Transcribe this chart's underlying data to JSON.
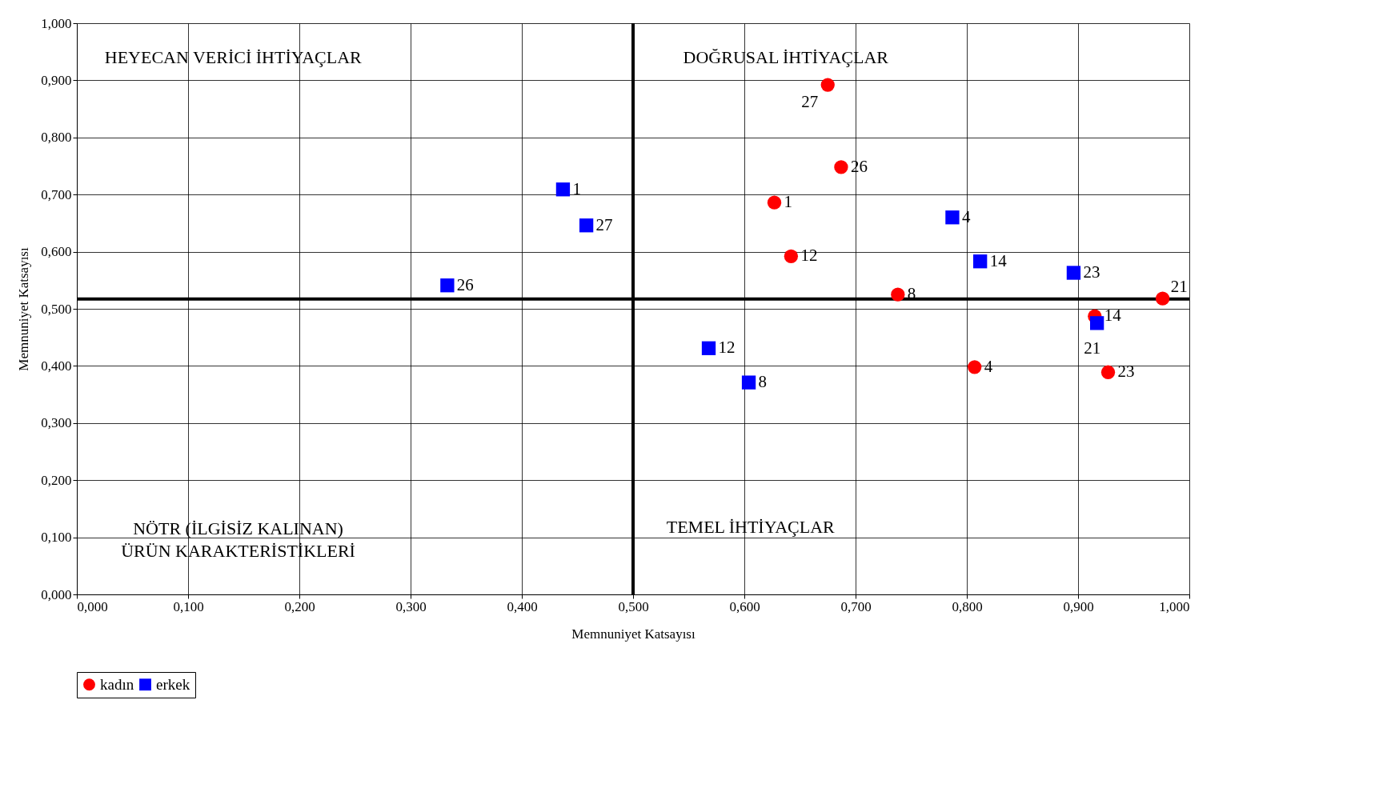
{
  "chart_data": {
    "type": "scatter",
    "xlabel": "Memnuniyet Katsayısı",
    "ylabel": "Memnuniyet Katsayısı",
    "xlim": [
      0,
      1
    ],
    "ylim": [
      0,
      1
    ],
    "xticks": [
      {
        "value": 0,
        "label": "0,000"
      },
      {
        "value": 0.1,
        "label": "0,100"
      },
      {
        "value": 0.2,
        "label": "0,200"
      },
      {
        "value": 0.3,
        "label": "0,300"
      },
      {
        "value": 0.4,
        "label": "0,400"
      },
      {
        "value": 0.5,
        "label": "0,500"
      },
      {
        "value": 0.6,
        "label": "0,600"
      },
      {
        "value": 0.7,
        "label": "0,700"
      },
      {
        "value": 0.8,
        "label": "0,800"
      },
      {
        "value": 0.9,
        "label": "0,900"
      },
      {
        "value": 1,
        "label": "1,000"
      }
    ],
    "yticks": [
      {
        "value": 0,
        "label": "0,000"
      },
      {
        "value": 0.1,
        "label": "0,100"
      },
      {
        "value": 0.2,
        "label": "0,200"
      },
      {
        "value": 0.3,
        "label": "0,300"
      },
      {
        "value": 0.4,
        "label": "0,400"
      },
      {
        "value": 0.5,
        "label": "0,500"
      },
      {
        "value": 0.6,
        "label": "0,600"
      },
      {
        "value": 0.7,
        "label": "0,700"
      },
      {
        "value": 0.8,
        "label": "0,800"
      },
      {
        "value": 0.9,
        "label": "0,900"
      },
      {
        "value": 1,
        "label": "1,000"
      }
    ],
    "grid": true,
    "legend": "bottom",
    "series": [
      {
        "name": "kadın",
        "color": "#ff0000",
        "marker": "circle",
        "x": [
          0.675,
          0.687,
          0.627,
          0.642,
          0.738,
          0.976,
          0.915,
          0.807,
          0.927
        ],
        "values": [
          0.892,
          0.748,
          0.686,
          0.592,
          0.525,
          0.518,
          0.487,
          0.398,
          0.389
        ]
      },
      {
        "name": "erkek",
        "color": "#0000ff",
        "marker": "square",
        "x": [
          0.437,
          0.458,
          0.333,
          0.568,
          0.604,
          0.787,
          0.812,
          0.896,
          0.917
        ],
        "values": [
          0.709,
          0.646,
          0.541,
          0.431,
          0.371,
          0.66,
          0.583,
          0.563,
          0.475
        ]
      }
    ],
    "ref_lines": [
      {
        "axis": "x",
        "value": 0.5,
        "color": "#000000"
      },
      {
        "axis": "y",
        "value": 0.517,
        "color": "#000000"
      }
    ],
    "annotations": [
      "HEYECAN VERİCİ İHTİYAÇLAR",
      "DOĞRUSAL İHTİYAÇLAR",
      "NÖTR (İLGİSİZ KALINAN)\nÜRÜN KARAKTERİSTİKLERİ",
      "TEMEL İHTİYAÇLAR",
      {
        "text": "27",
        "x": 0.675,
        "y": 0.892
      },
      {
        "text": "26",
        "x": 0.687,
        "y": 0.748
      },
      {
        "text": "1",
        "x": 0.627,
        "y": 0.686
      },
      {
        "text": "12",
        "x": 0.642,
        "y": 0.592
      },
      {
        "text": "8",
        "x": 0.738,
        "y": 0.525
      },
      {
        "text": "21",
        "x": 0.976,
        "y": 0.518
      },
      {
        "text": "14",
        "x": 0.915,
        "y": 0.487
      },
      {
        "text": "4",
        "x": 0.807,
        "y": 0.398
      },
      {
        "text": "23",
        "x": 0.927,
        "y": 0.389
      },
      {
        "text": "1",
        "x": 0.437,
        "y": 0.709
      },
      {
        "text": "27",
        "x": 0.458,
        "y": 0.646
      },
      {
        "text": "26",
        "x": 0.333,
        "y": 0.541
      },
      {
        "text": "12",
        "x": 0.568,
        "y": 0.431
      },
      {
        "text": "8",
        "x": 0.604,
        "y": 0.371
      },
      {
        "text": "4",
        "x": 0.787,
        "y": 0.66
      },
      {
        "text": "14",
        "x": 0.812,
        "y": 0.583
      },
      {
        "text": "23",
        "x": 0.896,
        "y": 0.563
      },
      {
        "text": "21",
        "x": 0.917,
        "y": 0.475
      }
    ]
  }
}
